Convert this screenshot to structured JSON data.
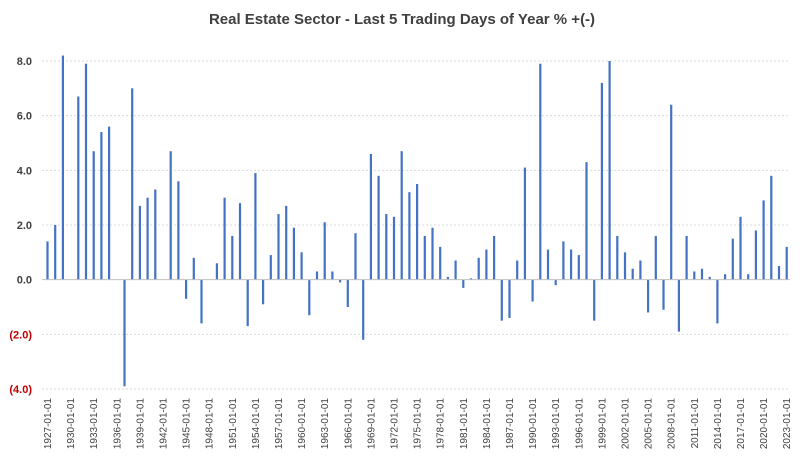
{
  "chart_data": {
    "type": "bar",
    "title": "Real Estate Sector - Last 5 Trading Days of Year % +(-)",
    "xlabel": "",
    "ylabel": "",
    "ylim": [
      -4.0,
      8.0
    ],
    "yticks": [
      {
        "value": 8.0,
        "label": "8.0"
      },
      {
        "value": 6.0,
        "label": "6.0"
      },
      {
        "value": 4.0,
        "label": "4.0"
      },
      {
        "value": 2.0,
        "label": "2.0"
      },
      {
        "value": 0.0,
        "label": "0.0"
      },
      {
        "value": -2.0,
        "label": "(2.0)"
      },
      {
        "value": -4.0,
        "label": "(4.0)"
      }
    ],
    "xtick_labels": [
      "1927-01-01",
      "1930-01-01",
      "1933-01-01",
      "1936-01-01",
      "1939-01-01",
      "1942-01-01",
      "1945-01-01",
      "1948-01-01",
      "1951-01-01",
      "1954-01-01",
      "1957-01-01",
      "1960-01-01",
      "1963-01-01",
      "1966-01-01",
      "1969-01-01",
      "1972-01-01",
      "1975-01-01",
      "1978-01-01",
      "1981-01-01",
      "1984-01-01",
      "1987-01-01",
      "1990-01-01",
      "1993-01-01",
      "1996-01-01",
      "1999-01-01",
      "2002-01-01",
      "2005-01-01",
      "2008-01-01",
      "2011-01-01",
      "2014-01-01",
      "2017-01-01",
      "2020-01-01",
      "2023-01-01"
    ],
    "categories": [
      "1927",
      "1928",
      "1929",
      "1930",
      "1931",
      "1932",
      "1933",
      "1934",
      "1935",
      "1936",
      "1937",
      "1938",
      "1939",
      "1940",
      "1941",
      "1942",
      "1943",
      "1944",
      "1945",
      "1946",
      "1947",
      "1948",
      "1949",
      "1950",
      "1951",
      "1952",
      "1953",
      "1954",
      "1955",
      "1956",
      "1957",
      "1958",
      "1959",
      "1960",
      "1961",
      "1962",
      "1963",
      "1964",
      "1965",
      "1966",
      "1967",
      "1968",
      "1969",
      "1970",
      "1971",
      "1972",
      "1973",
      "1974",
      "1975",
      "1976",
      "1977",
      "1978",
      "1979",
      "1980",
      "1981",
      "1982",
      "1983",
      "1984",
      "1985",
      "1986",
      "1987",
      "1988",
      "1989",
      "1990",
      "1991",
      "1992",
      "1993",
      "1994",
      "1995",
      "1996",
      "1997",
      "1998",
      "1999",
      "2000",
      "2001",
      "2002",
      "2003",
      "2004",
      "2005",
      "2006",
      "2007",
      "2008",
      "2009",
      "2010",
      "2011",
      "2012",
      "2013",
      "2014",
      "2015",
      "2016",
      "2017",
      "2018",
      "2019",
      "2020",
      "2021",
      "2022",
      "2023"
    ],
    "values": [
      1.4,
      2.0,
      8.2,
      0.0,
      6.7,
      7.9,
      4.7,
      5.4,
      5.6,
      0.0,
      -3.9,
      7.0,
      2.7,
      3.0,
      3.3,
      0.0,
      4.7,
      3.6,
      -0.7,
      0.8,
      -1.6,
      0.0,
      0.6,
      3.0,
      1.6,
      2.8,
      -1.7,
      3.9,
      -0.9,
      0.9,
      2.4,
      2.7,
      1.9,
      1.0,
      -1.3,
      0.3,
      2.1,
      0.3,
      -0.1,
      -1.0,
      1.7,
      -2.2,
      4.6,
      3.8,
      2.4,
      2.3,
      4.7,
      3.2,
      3.5,
      1.6,
      1.9,
      1.2,
      0.1,
      0.7,
      -0.3,
      0.05,
      0.8,
      1.1,
      1.6,
      -1.5,
      -1.4,
      0.7,
      4.1,
      -0.8,
      7.9,
      1.1,
      -0.2,
      1.4,
      1.1,
      0.9,
      4.3,
      -1.5,
      7.2,
      8.0,
      1.6,
      1.0,
      0.4,
      0.7,
      -1.2,
      1.6,
      -1.1,
      6.4,
      -1.9,
      1.6,
      0.3,
      0.4,
      0.1,
      -1.6,
      0.2,
      1.5,
      2.3,
      0.2,
      1.8,
      2.9,
      3.8,
      0.5,
      1.2
    ],
    "series_color": "#4472c4",
    "negative_label_color": "#c00000",
    "grid": true,
    "legend": "none"
  }
}
